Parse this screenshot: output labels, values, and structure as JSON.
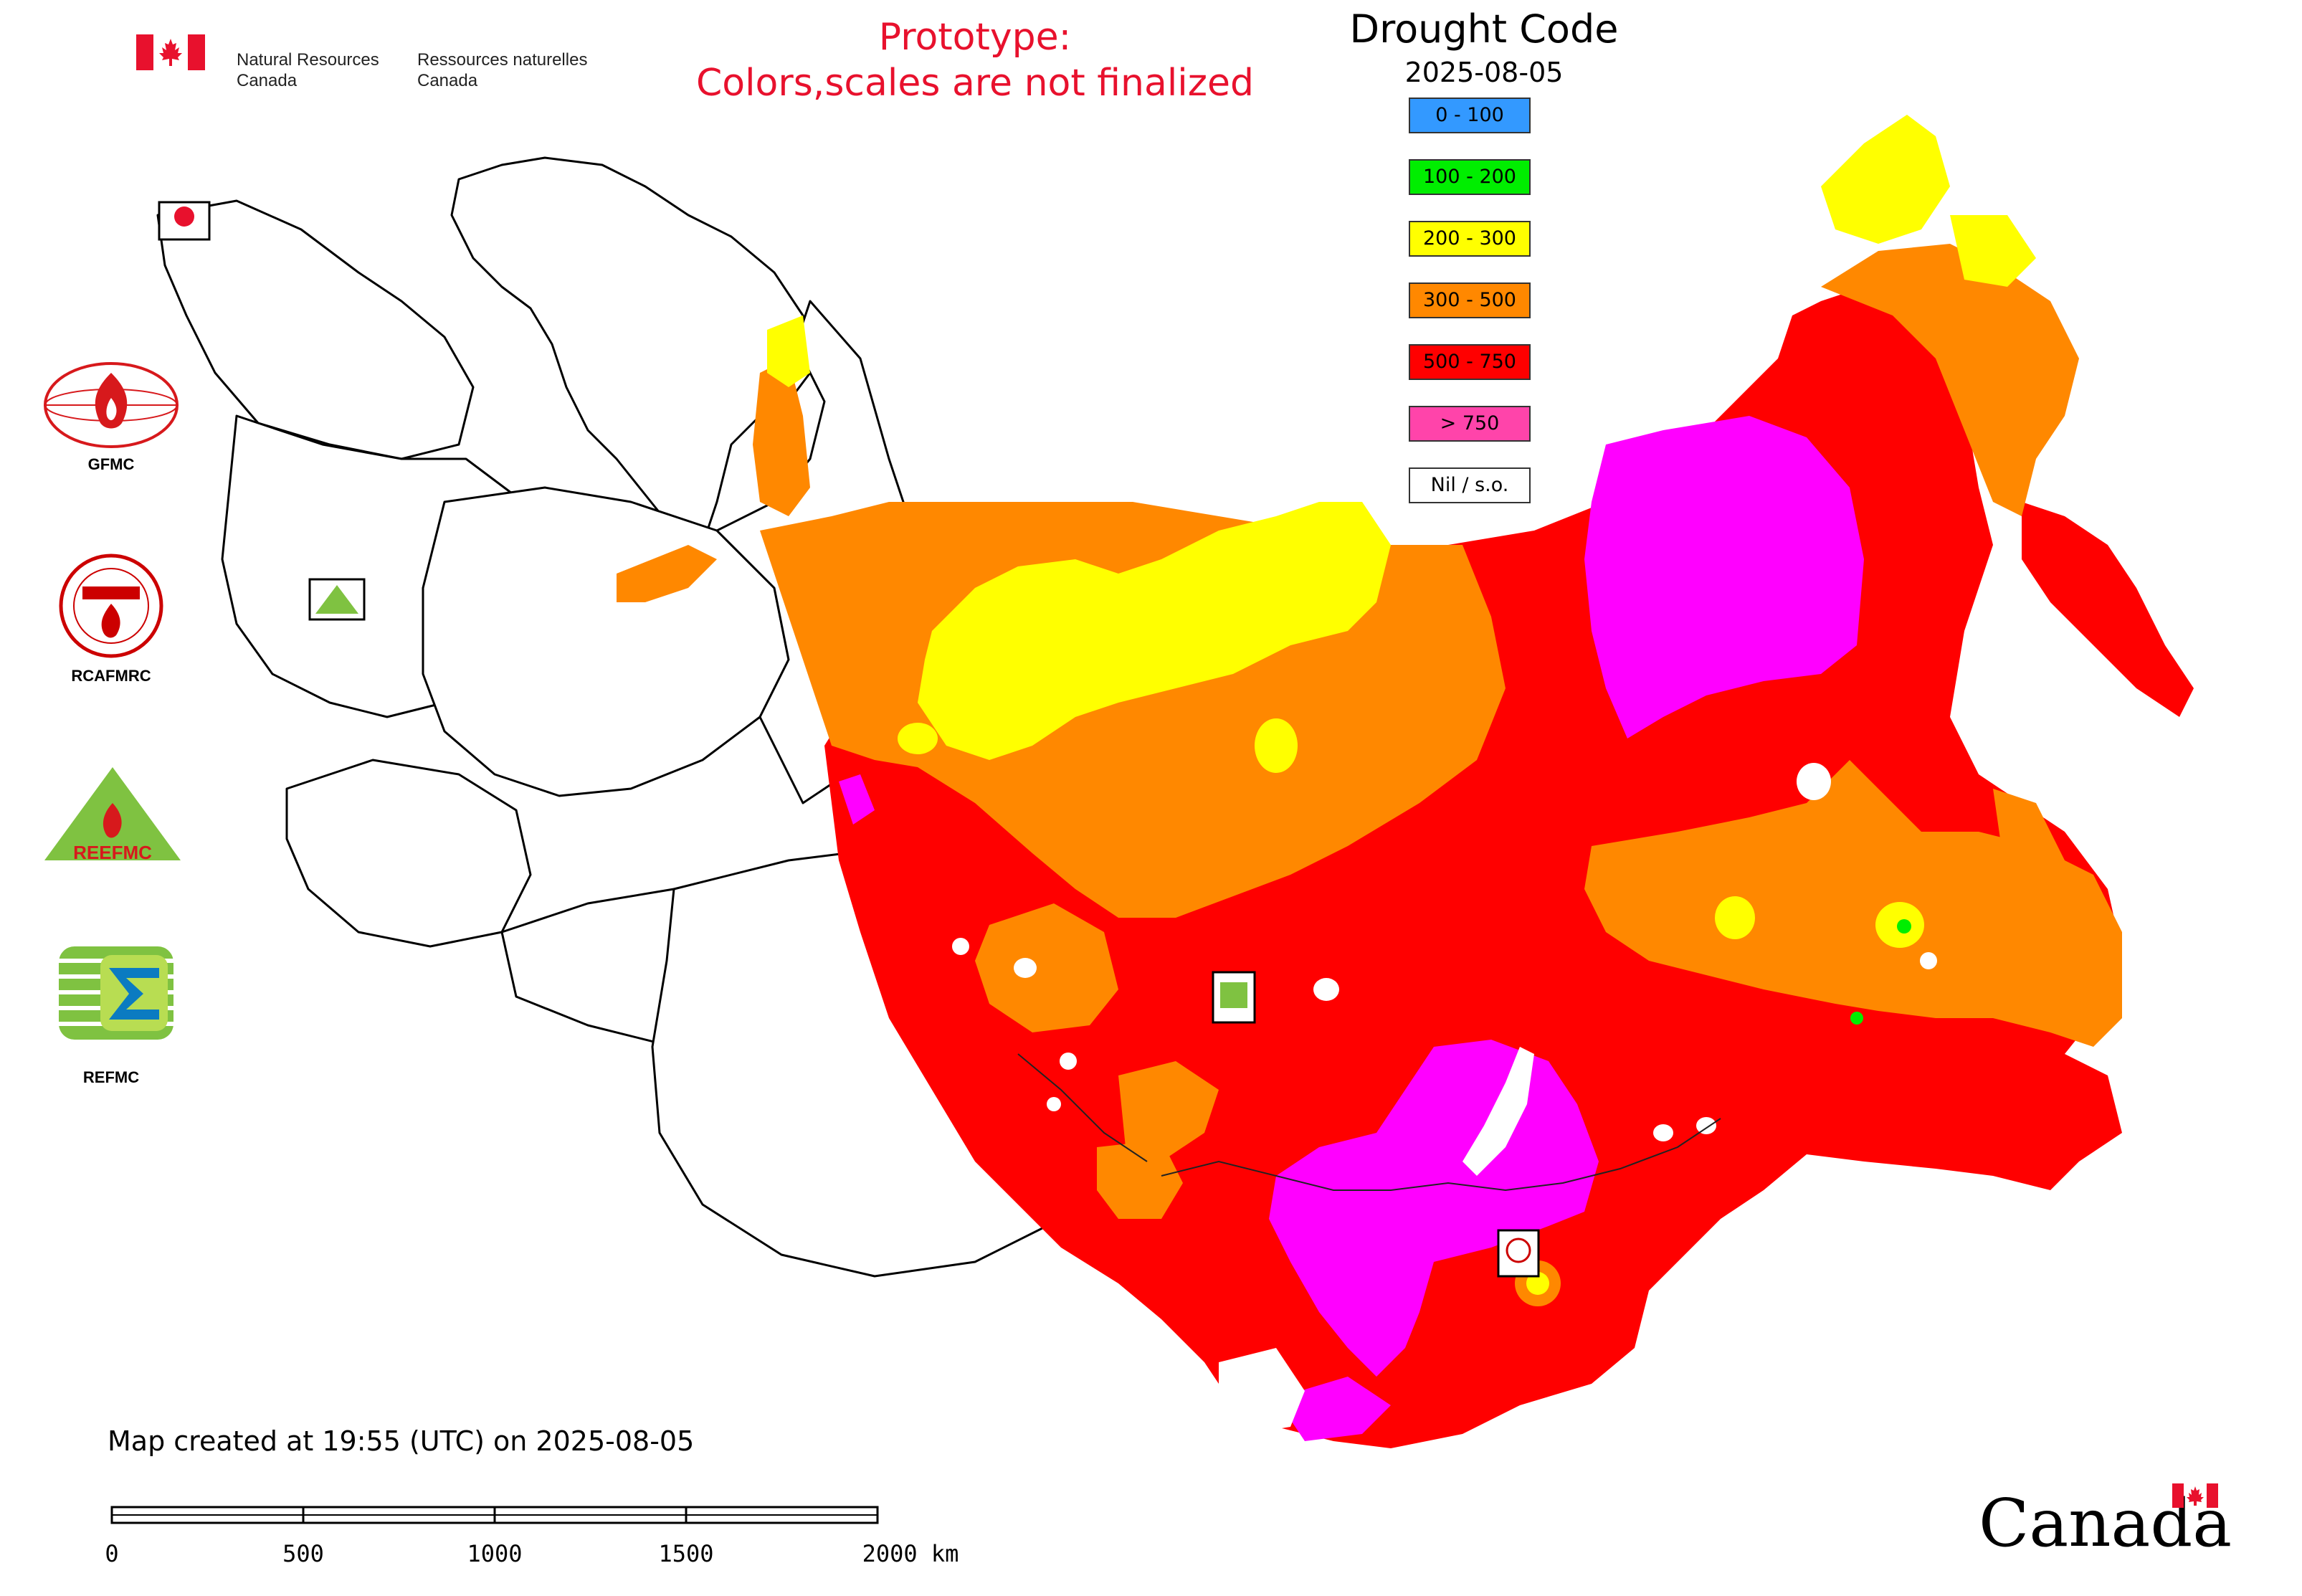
{
  "header": {
    "org_en_line1": "Natural Resources",
    "org_en_line2": "Canada",
    "org_fr_line1": "Ressources naturelles",
    "org_fr_line2": "Canada",
    "notice_line1": "Prototype:",
    "notice_line2": "Colors,scales are not finalized"
  },
  "legend": {
    "title": "Drought Code",
    "date": "2025-08-05",
    "items": [
      {
        "label": "0 - 100",
        "color": "#3399ff"
      },
      {
        "label": "100 - 200",
        "color": "#00ee00"
      },
      {
        "label": "200 - 300",
        "color": "#ffff00"
      },
      {
        "label": "300 - 500",
        "color": "#ff8800"
      },
      {
        "label": "500 - 750",
        "color": "#ff0000"
      },
      {
        "label": "> 750",
        "color": "#ff44aa"
      },
      {
        "label": "Nil / s.o.",
        "color": "#ffffff"
      }
    ]
  },
  "map": {
    "region_colors": {
      "yellow": "#ffff00",
      "orange": "#ff8800",
      "red": "#ff0000",
      "magenta": "#ff00ff",
      "green": "#00ee00",
      "nil": "#ffffff"
    }
  },
  "organizations": [
    {
      "label": "GFMC",
      "icon": "gfmc-flame-globe-icon"
    },
    {
      "label": "RCAFMRC",
      "icon": "rcafmrc-seal-icon"
    },
    {
      "label": "",
      "icon": "reefmc-triangle-icon"
    },
    {
      "label": "REFMC",
      "icon": "refmc-sigma-icon"
    }
  ],
  "footer": {
    "map_created": "Map created at 19:55 (UTC) on 2025-08-05",
    "scale_labels": [
      "0",
      "500",
      "1000",
      "1500",
      "2000 km"
    ],
    "wordmark": "Canada"
  }
}
